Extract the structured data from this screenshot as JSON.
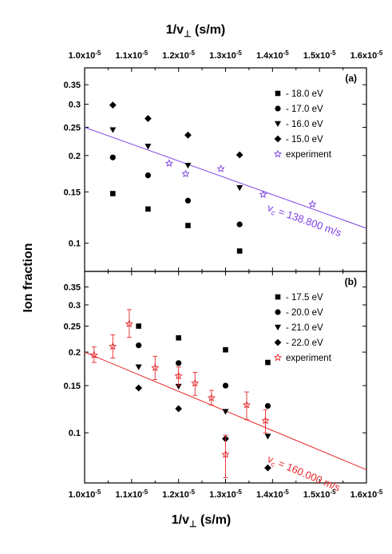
{
  "figure": {
    "top_axis_title": "1/v",
    "top_axis_title_sub": "⊥",
    "top_axis_title_units": " (s/m)",
    "bottom_axis_title": "1/v",
    "bottom_axis_title_sub": "⊥",
    "bottom_axis_title_units": " (s/m)",
    "y_axis_title": "Ion fraction"
  },
  "chart_data": [
    {
      "type": "scatter",
      "panel_label": "(a)",
      "x_ticks": [
        "1.0x10-5",
        "1.1x10-5",
        "1.2x10-5",
        "1.3x10-5",
        "1.4x10-5",
        "1.5x10-5",
        "1.6x10-5"
      ],
      "x_tick_values": [
        1e-05,
        1.1e-05,
        1.2e-05,
        1.3e-05,
        1.4e-05,
        1.5e-05,
        1.6e-05
      ],
      "y_ticks": [
        "0.1",
        "0.15",
        "0.2",
        "0.25",
        "0.3",
        "0.35"
      ],
      "y_tick_values": [
        0.1,
        0.15,
        0.2,
        0.25,
        0.3,
        0.35
      ],
      "xlim": [
        1e-05,
        1.6e-05
      ],
      "ylim": [
        0.08,
        0.4
      ],
      "yscale": "log",
      "ylabel": "Ion fraction",
      "xlabel": "1/v⊥ (s/m)",
      "legend_position": "top-right",
      "series": [
        {
          "name": "- 18.0 eV",
          "marker": "square",
          "color": "#000000",
          "x": [
            1.06e-05,
            1.135e-05,
            1.22e-05,
            1.33e-05
          ],
          "y": [
            0.148,
            0.131,
            0.115,
            0.094
          ]
        },
        {
          "name": "- 17.0 eV",
          "marker": "circle",
          "color": "#000000",
          "x": [
            1.06e-05,
            1.135e-05,
            1.22e-05,
            1.33e-05
          ],
          "y": [
            0.197,
            0.171,
            0.14,
            0.116
          ]
        },
        {
          "name": "- 16.0 eV",
          "marker": "triangle-down",
          "color": "#000000",
          "x": [
            1.06e-05,
            1.135e-05,
            1.22e-05,
            1.33e-05
          ],
          "y": [
            0.245,
            0.215,
            0.185,
            0.155
          ]
        },
        {
          "name": "- 15.0 eV",
          "marker": "diamond",
          "color": "#000000",
          "x": [
            1.06e-05,
            1.135e-05,
            1.22e-05,
            1.33e-05
          ],
          "y": [
            0.298,
            0.268,
            0.235,
            0.201
          ]
        },
        {
          "name": "experiment",
          "marker": "star",
          "color": "#7b3fe4",
          "x": [
            1.18e-05,
            1.215e-05,
            1.29e-05,
            1.38e-05,
            1.485e-05
          ],
          "y": [
            0.188,
            0.173,
            0.18,
            0.147,
            0.136
          ]
        }
      ],
      "fit": {
        "label": "v",
        "label_sub": "c",
        "label_rest": " = 138.800 m/s",
        "color": "#7b3fe4",
        "x": [
          1e-05,
          1.6e-05
        ],
        "y": [
          0.25,
          0.1125
        ]
      }
    },
    {
      "type": "scatter",
      "panel_label": "(b)",
      "x_ticks": [
        "1.0x10-5",
        "1.1x10-5",
        "1.2x10-5",
        "1.3x10-5",
        "1.4x10-5",
        "1.5x10-5",
        "1.6x10-5"
      ],
      "x_tick_values": [
        1e-05,
        1.1e-05,
        1.2e-05,
        1.3e-05,
        1.4e-05,
        1.5e-05,
        1.6e-05
      ],
      "y_ticks": [
        "0.1",
        "0.15",
        "0.2",
        "0.25",
        "0.3",
        "0.35"
      ],
      "y_tick_values": [
        0.1,
        0.15,
        0.2,
        0.25,
        0.3,
        0.35
      ],
      "xlim": [
        1e-05,
        1.6e-05
      ],
      "ylim": [
        0.065,
        0.4
      ],
      "yscale": "log",
      "ylabel": "Ion fraction",
      "xlabel": "1/v⊥ (s/m)",
      "legend_position": "top-right",
      "series": [
        {
          "name": "- 17.5 eV",
          "marker": "square",
          "color": "#000000",
          "x": [
            1.115e-05,
            1.2e-05,
            1.3e-05,
            1.39e-05
          ],
          "y": [
            0.25,
            0.226,
            0.204,
            0.183
          ]
        },
        {
          "name": "- 20.0 eV",
          "marker": "circle",
          "color": "#000000",
          "x": [
            1.115e-05,
            1.2e-05,
            1.3e-05,
            1.39e-05
          ],
          "y": [
            0.212,
            0.182,
            0.15,
            0.126
          ]
        },
        {
          "name": "- 21.0 eV",
          "marker": "triangle-down",
          "color": "#000000",
          "x": [
            1.115e-05,
            1.2e-05,
            1.3e-05,
            1.39e-05
          ],
          "y": [
            0.176,
            0.149,
            0.12,
            0.097
          ]
        },
        {
          "name": "- 22.0 eV",
          "marker": "diamond",
          "color": "#000000",
          "x": [
            1.115e-05,
            1.2e-05,
            1.3e-05,
            1.39e-05
          ],
          "y": [
            0.147,
            0.123,
            0.095,
            0.074
          ]
        },
        {
          "name": "experiment",
          "marker": "star",
          "color": "#e8262a",
          "x": [
            1.02e-05,
            1.06e-05,
            1.095e-05,
            1.15e-05,
            1.2e-05,
            1.235e-05,
            1.27e-05,
            1.3e-05,
            1.345e-05,
            1.385e-05
          ],
          "y": [
            0.195,
            0.21,
            0.255,
            0.175,
            0.163,
            0.153,
            0.135,
            0.083,
            0.127,
            0.111
          ],
          "y_low": [
            0.183,
            0.19,
            0.227,
            0.158,
            0.15,
            0.138,
            0.127,
            0.068,
            0.112,
            0.1
          ],
          "y_high": [
            0.209,
            0.232,
            0.288,
            0.193,
            0.176,
            0.168,
            0.144,
            0.098,
            0.142,
            0.122
          ]
        }
      ],
      "fit": {
        "label": "v",
        "label_sub": "c",
        "label_rest": " = 160.000 m/s",
        "color": "#e8262a",
        "x": [
          1e-05,
          1.6e-05
        ],
        "y": [
          0.2,
          0.0728
        ]
      }
    }
  ]
}
